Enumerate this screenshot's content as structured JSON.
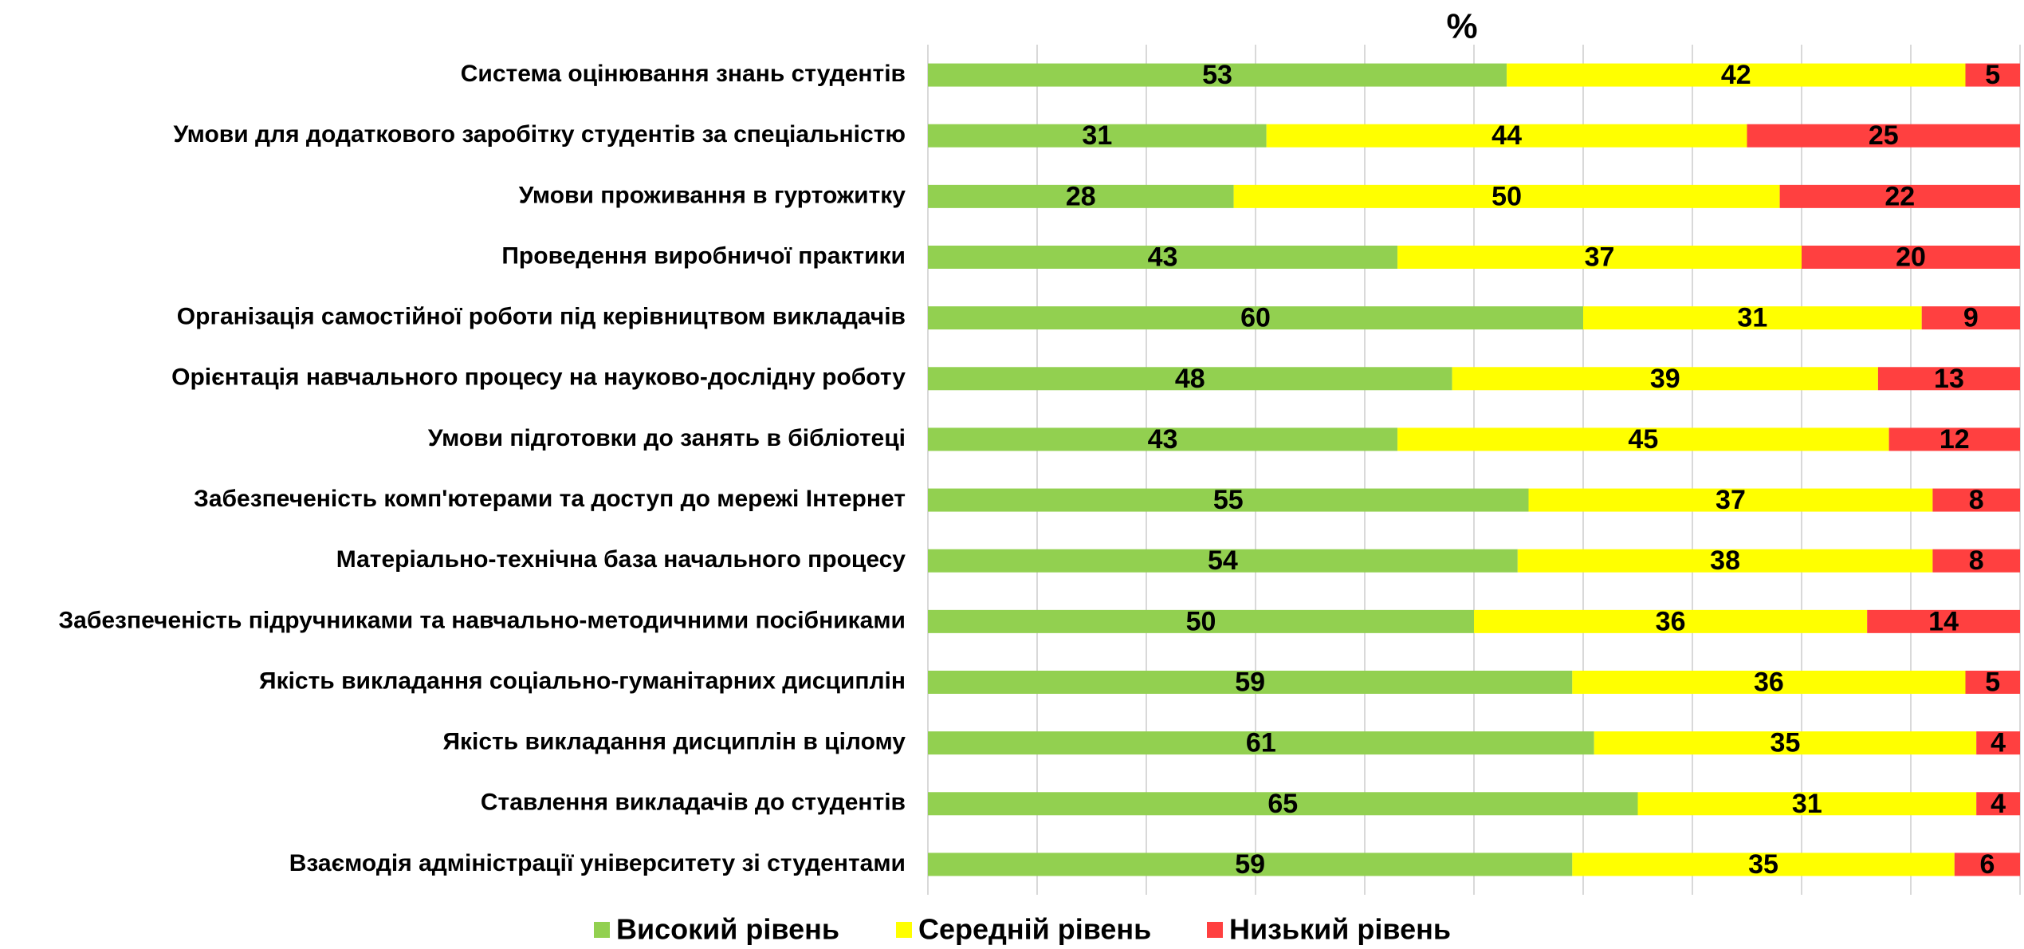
{
  "chart_data": {
    "type": "stacked_bar_horizontal",
    "title": "%",
    "categories": [
      "Система оцінювання знань студентів",
      "Умови для додаткового заробітку студентів за спеціальністю",
      "Умови проживання в гуртожитку",
      "Проведення виробничої практики",
      "Організація самостійної роботи під керівництвом викладачів",
      "Орієнтація навчального процесу на науково-дослідну роботу",
      "Умови підготовки до занять в бібліотеці",
      "Забезпеченість комп'ютерами та доступ до мережі Інтернет",
      "Матеріально-технічна база начального процесу",
      "Забезпеченість підручниками та навчально-методичними посібниками",
      "Якість викладання соціально-гуманітарних дисциплін",
      "Якість викладання дисциплін в цілому",
      "Ставлення викладачів до студентів",
      "Взаємодія адміністрації університету зі студентами"
    ],
    "series": [
      {
        "name": "Високий рівень",
        "color": "#92d050",
        "values": [
          53,
          31,
          28,
          43,
          60,
          48,
          43,
          55,
          54,
          50,
          59,
          61,
          65,
          59
        ]
      },
      {
        "name": "Середній рівень",
        "color": "#ffff00",
        "values": [
          42,
          44,
          50,
          37,
          31,
          39,
          45,
          37,
          38,
          36,
          36,
          35,
          31,
          35
        ]
      },
      {
        "name": "Низький рівень",
        "color": "#ff4040",
        "values": [
          5,
          25,
          22,
          20,
          9,
          13,
          12,
          8,
          8,
          14,
          5,
          4,
          4,
          6
        ]
      }
    ],
    "xlim": [
      0,
      100
    ],
    "xticks": [
      0,
      10,
      20,
      30,
      40,
      50,
      60,
      70,
      80,
      90,
      100
    ],
    "grid": true,
    "legend": "bottom"
  }
}
